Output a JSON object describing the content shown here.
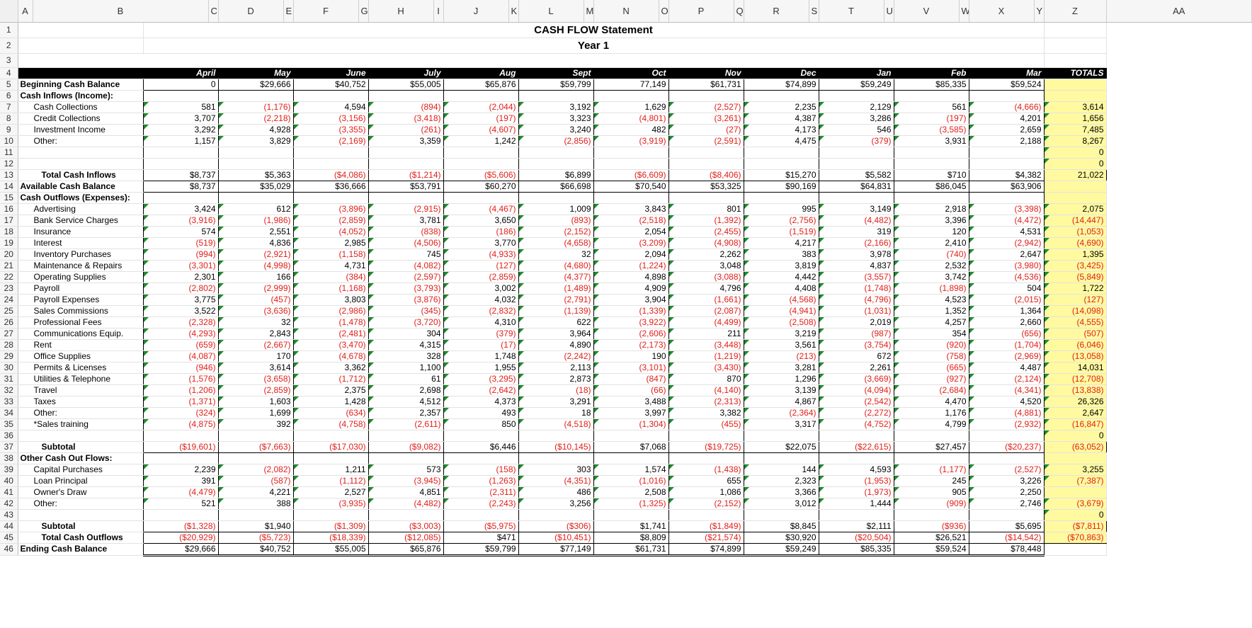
{
  "columns": [
    "A",
    "B",
    "C",
    "D",
    "E",
    "F",
    "G",
    "H",
    "I",
    "J",
    "K",
    "L",
    "M",
    "N",
    "O",
    "P",
    "Q",
    "R",
    "S",
    "T",
    "U",
    "V",
    "W",
    "X",
    "Y",
    "Z",
    "AA"
  ],
  "title": "CASH FLOW Statement",
  "subtitle": "Year 1",
  "months": [
    "April",
    "May",
    "June",
    "July",
    "Aug",
    "Sept",
    "Oct",
    "Nov",
    "Dec",
    "Jan",
    "Feb",
    "Mar"
  ],
  "totals_label": "TOTALS",
  "rows": [
    {
      "n": "5",
      "label": "Beginning Cash Balance",
      "style": "bold",
      "values": [
        "0",
        "$29,666",
        "$40,752",
        "$55,005",
        "$65,876",
        "$59,799",
        "77,149",
        "$61,731",
        "$74,899",
        "$59,249",
        "$85,335",
        "$59,524"
      ],
      "total": ""
    },
    {
      "n": "6",
      "label": "Cash Inflows (Income):",
      "style": "bold",
      "values": null,
      "total": ""
    },
    {
      "n": "7",
      "label": "Cash Collections",
      "style": "indent",
      "values": [
        "581",
        "(1,176)",
        "4,594",
        "(894)",
        "(2,044)",
        "3,192",
        "1,629",
        "(2,527)",
        "2,235",
        "2,129",
        "561",
        "(4,666)"
      ],
      "total": "3,614"
    },
    {
      "n": "8",
      "label": "Credit Collections",
      "style": "indent",
      "values": [
        "3,707",
        "(2,218)",
        "(3,156)",
        "(3,418)",
        "(197)",
        "3,323",
        "(4,801)",
        "(3,261)",
        "4,387",
        "3,286",
        "(197)",
        "4,201"
      ],
      "total": "1,656"
    },
    {
      "n": "9",
      "label": "Investment Income",
      "style": "indent",
      "values": [
        "3,292",
        "4,928",
        "(3,355)",
        "(261)",
        "(4,607)",
        "3,240",
        "482",
        "(27)",
        "4,173",
        "546",
        "(3,585)",
        "2,659"
      ],
      "total": "7,485"
    },
    {
      "n": "10",
      "label": "Other:",
      "style": "indent",
      "values": [
        "1,157",
        "3,829",
        "(2,169)",
        "3,359",
        "1,242",
        "(2,856)",
        "(3,919)",
        "(2,591)",
        "4,475",
        "(379)",
        "3,931",
        "2,188"
      ],
      "total": "8,267"
    },
    {
      "n": "11",
      "label": "",
      "style": "blank",
      "values": [
        "",
        "",
        "",
        "",
        "",
        "",
        "",
        "",
        "",
        "",
        "",
        ""
      ],
      "total": "0"
    },
    {
      "n": "12",
      "label": "",
      "style": "blank",
      "values": [
        "",
        "",
        "",
        "",
        "",
        "",
        "",
        "",
        "",
        "",
        "",
        ""
      ],
      "total": "0"
    },
    {
      "n": "13",
      "label": "Total Cash Inflows",
      "style": "subl",
      "values": [
        "$8,737",
        "$5,363",
        "($4,086)",
        "($1,214)",
        "($5,606)",
        "$6,899",
        "($6,609)",
        "($8,406)",
        "$15,270",
        "$5,582",
        "$710",
        "$4,382"
      ],
      "total": "21,022"
    },
    {
      "n": "14",
      "label": "Available Cash Balance",
      "style": "bold",
      "values": [
        "$8,737",
        "$35,029",
        "$36,666",
        "$53,791",
        "$60,270",
        "$66,698",
        "$70,540",
        "$53,325",
        "$90,169",
        "$64,831",
        "$86,045",
        "$63,906"
      ],
      "total": ""
    },
    {
      "n": "15",
      "label": "Cash Outflows (Expenses):",
      "style": "bold",
      "values": null,
      "total": ""
    },
    {
      "n": "16",
      "label": "Advertising",
      "style": "indent",
      "values": [
        "3,424",
        "612",
        "(3,896)",
        "(2,915)",
        "(4,467)",
        "1,009",
        "3,843",
        "801",
        "995",
        "3,149",
        "2,918",
        "(3,398)"
      ],
      "total": "2,075"
    },
    {
      "n": "17",
      "label": "Bank Service Charges",
      "style": "indent",
      "values": [
        "(3,916)",
        "(1,986)",
        "(2,859)",
        "3,781",
        "3,650",
        "(893)",
        "(2,518)",
        "(1,392)",
        "(2,756)",
        "(4,482)",
        "3,396",
        "(4,472)"
      ],
      "total": "(14,447)"
    },
    {
      "n": "18",
      "label": "Insurance",
      "style": "indent",
      "values": [
        "574",
        "2,551",
        "(4,052)",
        "(838)",
        "(186)",
        "(2,152)",
        "2,054",
        "(2,455)",
        "(1,519)",
        "319",
        "120",
        "4,531"
      ],
      "total": "(1,053)"
    },
    {
      "n": "19",
      "label": "Interest",
      "style": "indent",
      "values": [
        "(519)",
        "4,836",
        "2,985",
        "(4,506)",
        "3,770",
        "(4,658)",
        "(3,209)",
        "(4,908)",
        "4,217",
        "(2,166)",
        "2,410",
        "(2,942)"
      ],
      "total": "(4,690)"
    },
    {
      "n": "20",
      "label": "Inventory Purchases",
      "style": "indent",
      "values": [
        "(994)",
        "(2,921)",
        "(1,158)",
        "745",
        "(4,933)",
        "32",
        "2,094",
        "2,262",
        "383",
        "3,978",
        "(740)",
        "2,647"
      ],
      "total": "1,395"
    },
    {
      "n": "21",
      "label": "Maintenance & Repairs",
      "style": "indent",
      "values": [
        "(3,301)",
        "(4,998)",
        "4,731",
        "(4,082)",
        "(127)",
        "(4,680)",
        "(1,224)",
        "3,048",
        "3,819",
        "4,837",
        "2,532",
        "(3,980)"
      ],
      "total": "(3,425)"
    },
    {
      "n": "22",
      "label": "Operating Supplies",
      "style": "indent",
      "values": [
        "2,301",
        "166",
        "(384)",
        "(2,597)",
        "(2,859)",
        "(4,377)",
        "4,898",
        "(3,088)",
        "4,442",
        "(3,557)",
        "3,742",
        "(4,536)"
      ],
      "total": "(5,849)"
    },
    {
      "n": "23",
      "label": "Payroll",
      "style": "indent",
      "values": [
        "(2,802)",
        "(2,999)",
        "(1,168)",
        "(3,793)",
        "3,002",
        "(1,489)",
        "4,909",
        "4,796",
        "4,408",
        "(1,748)",
        "(1,898)",
        "504"
      ],
      "total": "1,722"
    },
    {
      "n": "24",
      "label": "Payroll Expenses",
      "style": "indent",
      "values": [
        "3,775",
        "(457)",
        "3,803",
        "(3,876)",
        "4,032",
        "(2,791)",
        "3,904",
        "(1,661)",
        "(4,568)",
        "(4,796)",
        "4,523",
        "(2,015)"
      ],
      "total": "(127)"
    },
    {
      "n": "25",
      "label": "Sales Commissions",
      "style": "indent",
      "values": [
        "3,522",
        "(3,636)",
        "(2,986)",
        "(345)",
        "(2,832)",
        "(1,139)",
        "(1,339)",
        "(2,087)",
        "(4,941)",
        "(1,031)",
        "1,352",
        "1,364"
      ],
      "total": "(14,098)"
    },
    {
      "n": "26",
      "label": "Professional Fees",
      "style": "indent",
      "values": [
        "(2,328)",
        "32",
        "(1,478)",
        "(3,720)",
        "4,310",
        "622",
        "(3,922)",
        "(4,499)",
        "(2,508)",
        "2,019",
        "4,257",
        "2,660"
      ],
      "total": "(4,555)"
    },
    {
      "n": "27",
      "label": "Communications Equip.",
      "style": "indent",
      "values": [
        "(4,293)",
        "2,843",
        "(2,481)",
        "304",
        "(379)",
        "3,964",
        "(2,606)",
        "211",
        "3,219",
        "(987)",
        "354",
        "(656)"
      ],
      "total": "(507)"
    },
    {
      "n": "28",
      "label": "Rent",
      "style": "indent",
      "values": [
        "(659)",
        "(2,667)",
        "(3,470)",
        "4,315",
        "(17)",
        "4,890",
        "(2,173)",
        "(3,448)",
        "3,561",
        "(3,754)",
        "(920)",
        "(1,704)"
      ],
      "total": "(6,046)"
    },
    {
      "n": "29",
      "label": "Office Supplies",
      "style": "indent",
      "values": [
        "(4,087)",
        "170",
        "(4,678)",
        "328",
        "1,748",
        "(2,242)",
        "190",
        "(1,219)",
        "(213)",
        "672",
        "(758)",
        "(2,969)"
      ],
      "total": "(13,058)"
    },
    {
      "n": "30",
      "label": "Permits & Licenses",
      "style": "indent",
      "values": [
        "(946)",
        "3,614",
        "3,362",
        "1,100",
        "1,955",
        "2,113",
        "(3,101)",
        "(3,430)",
        "3,281",
        "2,261",
        "(665)",
        "4,487"
      ],
      "total": "14,031"
    },
    {
      "n": "31",
      "label": "Utilities & Telephone",
      "style": "indent",
      "values": [
        "(1,576)",
        "(3,658)",
        "(1,712)",
        "61",
        "(3,295)",
        "2,873",
        "(847)",
        "870",
        "1,296",
        "(3,669)",
        "(927)",
        "(2,124)"
      ],
      "total": "(12,708)"
    },
    {
      "n": "32",
      "label": "Travel",
      "style": "indent",
      "values": [
        "(1,206)",
        "(2,859)",
        "2,375",
        "2,698",
        "(2,642)",
        "(18)",
        "(66)",
        "(4,140)",
        "3,139",
        "(4,094)",
        "(2,684)",
        "(4,341)"
      ],
      "total": "(13,838)"
    },
    {
      "n": "33",
      "label": "Taxes",
      "style": "indent",
      "values": [
        "(1,371)",
        "1,603",
        "1,428",
        "4,512",
        "4,373",
        "3,291",
        "3,488",
        "(2,313)",
        "4,867",
        "(2,542)",
        "4,470",
        "4,520"
      ],
      "total": "26,326"
    },
    {
      "n": "34",
      "label": "Other:",
      "style": "indent",
      "values": [
        "(324)",
        "1,699",
        "(634)",
        "2,357",
        "493",
        "18",
        "3,997",
        "3,382",
        "(2,364)",
        "(2,272)",
        "1,176",
        "(4,881)"
      ],
      "total": "2,647"
    },
    {
      "n": "35",
      "label": "*Sales training",
      "style": "indent",
      "values": [
        "(4,875)",
        "392",
        "(4,758)",
        "(2,611)",
        "850",
        "(4,518)",
        "(1,304)",
        "(455)",
        "3,317",
        "(4,752)",
        "4,799",
        "(2,932)"
      ],
      "total": "(16,847)"
    },
    {
      "n": "36",
      "label": "",
      "style": "blank",
      "values": [
        "",
        "",
        "",
        "",
        "",
        "",
        "",
        "",
        "",
        "",
        "",
        ""
      ],
      "total": "0"
    },
    {
      "n": "37",
      "label": "Subtotal",
      "style": "subl",
      "values": [
        "($19,601)",
        "($7,663)",
        "($17,030)",
        "($9,082)",
        "$6,446",
        "($10,145)",
        "$7,068",
        "($19,725)",
        "$22,075",
        "($22,615)",
        "$27,457",
        "($20,237)"
      ],
      "total": "(63,052)"
    },
    {
      "n": "38",
      "label": "Other Cash Out Flows:",
      "style": "bold",
      "values": null,
      "total": ""
    },
    {
      "n": "39",
      "label": "Capital Purchases",
      "style": "indent",
      "values": [
        "2,239",
        "(2,082)",
        "1,211",
        "573",
        "(158)",
        "303",
        "1,574",
        "(1,438)",
        "144",
        "4,593",
        "(1,177)",
        "(2,527)"
      ],
      "total": "3,255"
    },
    {
      "n": "40",
      "label": "Loan Principal",
      "style": "indent",
      "values": [
        "391",
        "(587)",
        "(1,112)",
        "(3,945)",
        "(1,263)",
        "(4,351)",
        "(1,016)",
        "655",
        "2,323",
        "(1,953)",
        "245",
        "3,226"
      ],
      "total": "(7,387)"
    },
    {
      "n": "41",
      "label": "Owner's Draw",
      "style": "indent",
      "values": [
        "(4,479)",
        "4,221",
        "2,527",
        "4,851",
        "(2,311)",
        "486",
        "2,508",
        "1,086",
        "3,366",
        "(1,973)",
        "905",
        "2,250"
      ],
      "total": ""
    },
    {
      "n": "42",
      "label": "Other:",
      "style": "indent",
      "values": [
        "521",
        "388",
        "(3,935)",
        "(4,482)",
        "(2,243)",
        "3,256",
        "(1,325)",
        "(2,152)",
        "3,012",
        "1,444",
        "(909)",
        "2,746"
      ],
      "total": "(3,679)"
    },
    {
      "n": "43",
      "label": "",
      "style": "blank",
      "values": [
        "",
        "",
        "",
        "",
        "",
        "",
        "",
        "",
        "",
        "",
        "",
        ""
      ],
      "total": "0"
    },
    {
      "n": "44",
      "label": "Subtotal",
      "style": "subl",
      "values": [
        "($1,328)",
        "$1,940",
        "($1,309)",
        "($3,003)",
        "($5,975)",
        "($306)",
        "$1,741",
        "($1,849)",
        "$8,845",
        "$2,111",
        "($936)",
        "$5,695"
      ],
      "total": "($7,811)"
    },
    {
      "n": "45",
      "label": "Total Cash Outflows",
      "style": "subl",
      "values": [
        "($20,929)",
        "($5,723)",
        "($18,339)",
        "($12,085)",
        "$471",
        "($10,451)",
        "$8,809",
        "($21,574)",
        "$30,920",
        "($20,504)",
        "$26,521",
        "($14,542)"
      ],
      "total": "($70,863)"
    },
    {
      "n": "46",
      "label": "Ending Cash Balance",
      "style": "bold",
      "values": [
        "$29,666",
        "$40,752",
        "$55,005",
        "$65,876",
        "$59,799",
        "$77,149",
        "$61,731",
        "$74,899",
        "$59,249",
        "$85,335",
        "$59,524",
        "$78,448"
      ],
      "total": ""
    }
  ]
}
